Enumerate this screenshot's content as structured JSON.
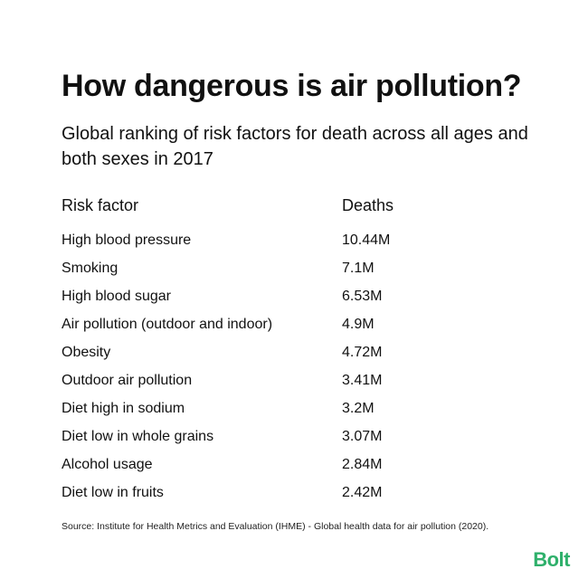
{
  "colors": {
    "text": "#111111",
    "brand": "#2fb06b"
  },
  "header": {
    "title": "How dangerous is air pollution?",
    "subtitle": "Global ranking of risk factors for death across all ages and both sexes in 2017"
  },
  "chart_data": {
    "type": "table",
    "columns": [
      "Risk factor",
      "Deaths"
    ],
    "rows": [
      [
        "High blood pressure",
        "10.44M"
      ],
      [
        "Smoking",
        "7.1M"
      ],
      [
        "High blood sugar",
        "6.53M"
      ],
      [
        "Air pollution (outdoor and indoor)",
        "4.9M"
      ],
      [
        "Obesity",
        "4.72M"
      ],
      [
        "Outdoor air pollution",
        "3.41M"
      ],
      [
        "Diet high in sodium",
        "3.2M"
      ],
      [
        "Diet low in whole grains",
        "3.07M"
      ],
      [
        "Alcohol usage",
        "2.84M"
      ],
      [
        "Diet low in fruits",
        "2.42M"
      ]
    ]
  },
  "footer": {
    "source": "Source: Institute for Health Metrics and Evaluation (IHME) - Global health data for air pollution (2020).",
    "logo": "Bolt"
  }
}
